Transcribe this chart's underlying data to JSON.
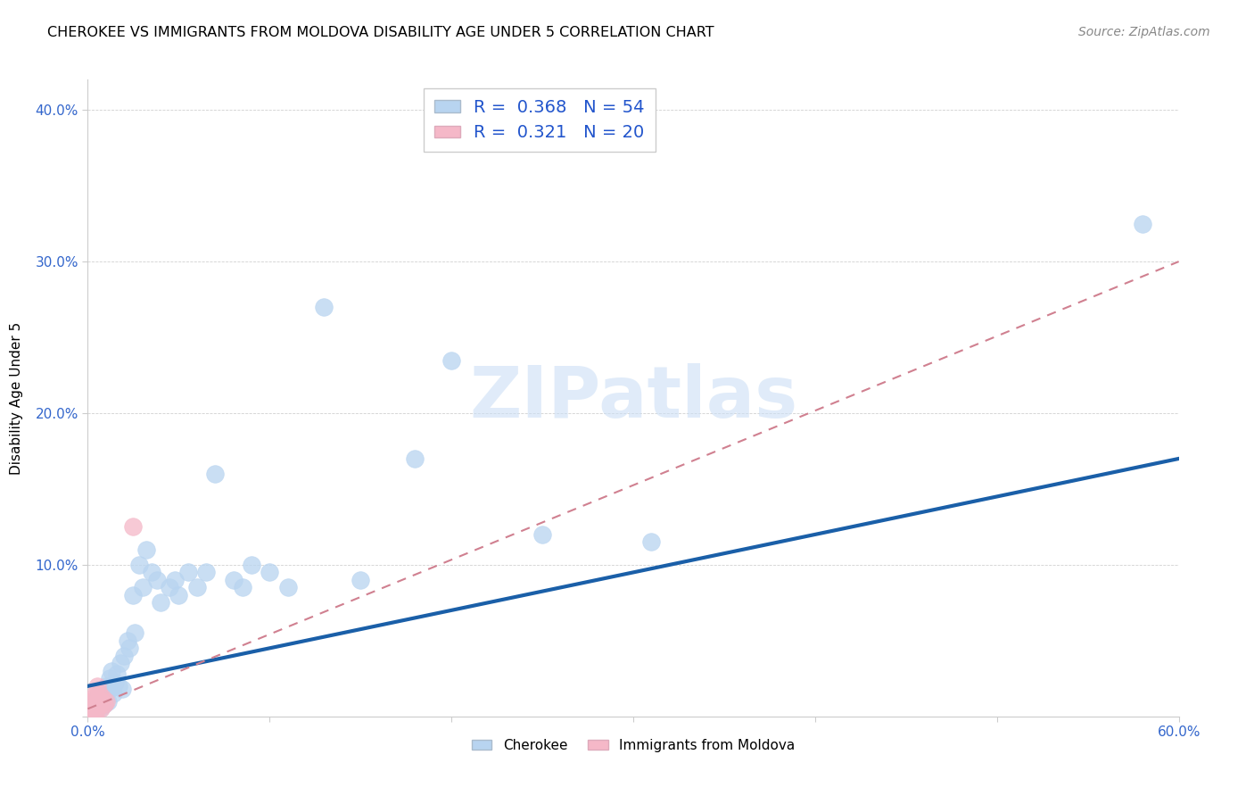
{
  "title": "CHEROKEE VS IMMIGRANTS FROM MOLDOVA DISABILITY AGE UNDER 5 CORRELATION CHART",
  "source": "Source: ZipAtlas.com",
  "ylabel": "Disability Age Under 5",
  "xlim": [
    0,
    0.6
  ],
  "ylim": [
    0,
    0.42
  ],
  "xticks": [
    0.0,
    0.1,
    0.2,
    0.3,
    0.4,
    0.5,
    0.6
  ],
  "yticks": [
    0.0,
    0.1,
    0.2,
    0.3,
    0.4
  ],
  "xtick_labels": [
    "0.0%",
    "",
    "",
    "",
    "",
    "",
    "60.0%"
  ],
  "ytick_labels": [
    "",
    "10.0%",
    "20.0%",
    "30.0%",
    "40.0%"
  ],
  "cherokee_color": "#b8d4f0",
  "cherokee_line_color": "#1a5fa8",
  "moldova_color": "#f5b8c8",
  "moldova_line_color": "#d08090",
  "watermark_text": "ZIPatlas",
  "cherokee_line_x0": 0.0,
  "cherokee_line_y0": 0.02,
  "cherokee_line_x1": 0.6,
  "cherokee_line_y1": 0.17,
  "moldova_line_x0": 0.0,
  "moldova_line_y0": 0.005,
  "moldova_line_x1": 0.6,
  "moldova_line_y1": 0.3,
  "cherokee_x": [
    0.002,
    0.003,
    0.004,
    0.005,
    0.005,
    0.006,
    0.006,
    0.007,
    0.007,
    0.008,
    0.008,
    0.009,
    0.01,
    0.01,
    0.011,
    0.012,
    0.012,
    0.013,
    0.014,
    0.015,
    0.016,
    0.017,
    0.018,
    0.019,
    0.02,
    0.022,
    0.023,
    0.025,
    0.026,
    0.028,
    0.03,
    0.032,
    0.035,
    0.038,
    0.04,
    0.045,
    0.048,
    0.05,
    0.055,
    0.06,
    0.065,
    0.07,
    0.08,
    0.085,
    0.09,
    0.1,
    0.11,
    0.13,
    0.15,
    0.18,
    0.2,
    0.25,
    0.31,
    0.58
  ],
  "cherokee_y": [
    0.005,
    0.008,
    0.006,
    0.01,
    0.012,
    0.008,
    0.015,
    0.006,
    0.01,
    0.012,
    0.018,
    0.008,
    0.015,
    0.02,
    0.01,
    0.025,
    0.018,
    0.03,
    0.015,
    0.022,
    0.028,
    0.02,
    0.035,
    0.018,
    0.04,
    0.05,
    0.045,
    0.08,
    0.055,
    0.1,
    0.085,
    0.11,
    0.095,
    0.09,
    0.075,
    0.085,
    0.09,
    0.08,
    0.095,
    0.085,
    0.095,
    0.16,
    0.09,
    0.085,
    0.1,
    0.095,
    0.085,
    0.27,
    0.09,
    0.17,
    0.235,
    0.12,
    0.115,
    0.325
  ],
  "moldova_x": [
    0.001,
    0.002,
    0.002,
    0.003,
    0.003,
    0.003,
    0.004,
    0.004,
    0.004,
    0.005,
    0.005,
    0.005,
    0.006,
    0.006,
    0.007,
    0.007,
    0.008,
    0.009,
    0.01,
    0.025
  ],
  "moldova_y": [
    0.005,
    0.003,
    0.01,
    0.005,
    0.008,
    0.012,
    0.003,
    0.008,
    0.015,
    0.005,
    0.01,
    0.02,
    0.008,
    0.015,
    0.005,
    0.01,
    0.012,
    0.008,
    0.01,
    0.125
  ]
}
